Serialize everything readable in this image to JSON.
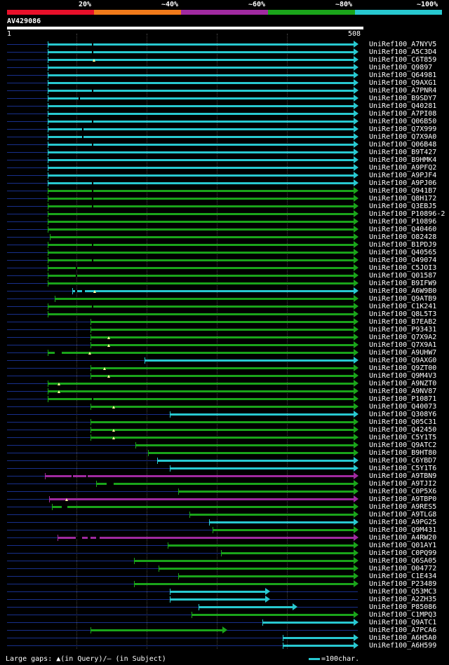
{
  "legend": {
    "labels": [
      "20%",
      "~40%",
      "~60%",
      "~80%",
      "~100%"
    ],
    "colors": [
      "#e8102a",
      "#f07a1a",
      "#a02aa0",
      "#1aa41a",
      "#28c8d0"
    ]
  },
  "query": {
    "name": "AV429086",
    "start": "1",
    "end": "508",
    "length": 508
  },
  "footer": {
    "gaps_text": "Large gaps: ▲(in Query)/– (in Subject)",
    "scale_text": "=100char."
  },
  "hits": [
    {
      "label": "UniRef100_A7NYV5",
      "start": 60,
      "end": 508,
      "color": "cyan",
      "gaps": [
        [
          124,
          126
        ]
      ],
      "tri": null
    },
    {
      "label": "UniRef100_A5C3D4",
      "start": 60,
      "end": 508,
      "color": "cyan",
      "gaps": [
        [
          124,
          126
        ]
      ],
      "tri": null
    },
    {
      "label": "UniRef100_C6T859",
      "start": 60,
      "end": 508,
      "color": "cyan",
      "gaps": [],
      "tri": 127
    },
    {
      "label": "UniRef100_Q9897",
      "start": 60,
      "end": 508,
      "color": "cyan",
      "gaps": [],
      "tri": null
    },
    {
      "label": "UniRef100_Q64981",
      "start": 60,
      "end": 508,
      "color": "cyan",
      "gaps": [],
      "tri": null
    },
    {
      "label": "UniRef100_Q9AXG1",
      "start": 60,
      "end": 508,
      "color": "cyan",
      "gaps": [],
      "tri": null
    },
    {
      "label": "UniRef100_A7PNR4",
      "start": 60,
      "end": 508,
      "color": "cyan",
      "gaps": [
        [
          124,
          126
        ]
      ],
      "tri": null
    },
    {
      "label": "UniRef100_B9SDY7",
      "start": 60,
      "end": 508,
      "color": "cyan",
      "gaps": [
        [
          104,
          106
        ]
      ],
      "tri": null
    },
    {
      "label": "UniRef100_Q40281",
      "start": 60,
      "end": 508,
      "color": "cyan",
      "gaps": [],
      "tri": null
    },
    {
      "label": "UniRef100_A7PI08",
      "start": 60,
      "end": 508,
      "color": "cyan",
      "gaps": [],
      "tri": null
    },
    {
      "label": "UniRef100_Q06B50",
      "start": 60,
      "end": 508,
      "color": "cyan",
      "gaps": [
        [
          124,
          126
        ]
      ],
      "tri": null
    },
    {
      "label": "UniRef100_Q7X999",
      "start": 60,
      "end": 508,
      "color": "cyan",
      "gaps": [
        [
          110,
          112
        ]
      ],
      "tri": null
    },
    {
      "label": "UniRef100_Q7X9A0",
      "start": 60,
      "end": 508,
      "color": "cyan",
      "gaps": [
        [
          110,
          112
        ]
      ],
      "tri": null
    },
    {
      "label": "UniRef100_Q06B48",
      "start": 60,
      "end": 508,
      "color": "cyan",
      "gaps": [
        [
          124,
          126
        ]
      ],
      "tri": null
    },
    {
      "label": "UniRef100_B9T427",
      "start": 60,
      "end": 508,
      "color": "cyan",
      "gaps": [],
      "tri": null
    },
    {
      "label": "UniRef100_B9HMK4",
      "start": 60,
      "end": 508,
      "color": "cyan",
      "gaps": [],
      "tri": null
    },
    {
      "label": "UniRef100_A9PFQ2",
      "start": 60,
      "end": 508,
      "color": "cyan",
      "gaps": [],
      "tri": null
    },
    {
      "label": "UniRef100_A9PJF4",
      "start": 60,
      "end": 508,
      "color": "cyan",
      "gaps": [],
      "tri": null
    },
    {
      "label": "UniRef100_A9PJ06",
      "start": 60,
      "end": 508,
      "color": "cyan",
      "gaps": [
        [
          124,
          126
        ]
      ],
      "tri": null
    },
    {
      "label": "UniRef100_Q941B7",
      "start": 60,
      "end": 508,
      "color": "green",
      "gaps": [
        [
          124,
          126
        ]
      ],
      "tri": null
    },
    {
      "label": "UniRef100_Q8H172",
      "start": 60,
      "end": 508,
      "color": "green",
      "gaps": [
        [
          124,
          126
        ]
      ],
      "tri": null
    },
    {
      "label": "UniRef100_Q3EBJ5",
      "start": 60,
      "end": 508,
      "color": "green",
      "gaps": [
        [
          124,
          126
        ]
      ],
      "tri": null
    },
    {
      "label": "UniRef100_P10896-2",
      "start": 60,
      "end": 508,
      "color": "green",
      "gaps": [],
      "tri": null
    },
    {
      "label": "UniRef100_P10896",
      "start": 60,
      "end": 508,
      "color": "green",
      "gaps": [],
      "tri": null
    },
    {
      "label": "UniRef100_Q40460",
      "start": 60,
      "end": 508,
      "color": "green",
      "gaps": [],
      "tri": null
    },
    {
      "label": "UniRef100_O82428",
      "start": 63,
      "end": 508,
      "color": "green",
      "gaps": [],
      "tri": null
    },
    {
      "label": "UniRef100_B1PDJ9",
      "start": 60,
      "end": 508,
      "color": "green",
      "gaps": [
        [
          124,
          126
        ]
      ],
      "tri": null
    },
    {
      "label": "UniRef100_Q40565",
      "start": 60,
      "end": 508,
      "color": "green",
      "gaps": [],
      "tri": null
    },
    {
      "label": "UniRef100_O49074",
      "start": 60,
      "end": 508,
      "color": "green",
      "gaps": [
        [
          124,
          126
        ]
      ],
      "tri": null
    },
    {
      "label": "UniRef100_C5JOI3",
      "start": 60,
      "end": 508,
      "color": "green",
      "gaps": [
        [
          100,
          102
        ]
      ],
      "tri": null
    },
    {
      "label": "UniRef100_Q01587",
      "start": 60,
      "end": 508,
      "color": "green",
      "gaps": [
        [
          100,
          102
        ]
      ],
      "tri": null
    },
    {
      "label": "UniRef100_B9IFW9",
      "start": 60,
      "end": 508,
      "color": "green",
      "gaps": [],
      "tri": null
    },
    {
      "label": "UniRef100_A6W9B0",
      "start": 95,
      "end": 508,
      "color": "cyan",
      "gaps": [
        [
          99,
          102
        ],
        [
          110,
          114
        ]
      ],
      "tri": 128
    },
    {
      "label": "UniRef100_Q9ATB9",
      "start": 70,
      "end": 508,
      "color": "green",
      "gaps": [],
      "tri": null
    },
    {
      "label": "UniRef100_C1K241",
      "start": 60,
      "end": 508,
      "color": "green",
      "gaps": [
        [
          124,
          126
        ]
      ],
      "tri": null
    },
    {
      "label": "UniRef100_Q8L5T3",
      "start": 60,
      "end": 508,
      "color": "green",
      "gaps": [],
      "tri": null
    },
    {
      "label": "UniRef100_B7EAB2",
      "start": 122,
      "end": 508,
      "color": "green",
      "gaps": [],
      "tri": null
    },
    {
      "label": "UniRef100_P93431",
      "start": 122,
      "end": 508,
      "color": "green",
      "gaps": [],
      "tri": null
    },
    {
      "label": "UniRef100_Q7X9A2",
      "start": 122,
      "end": 508,
      "color": "green",
      "gaps": [],
      "tri": 148
    },
    {
      "label": "UniRef100_Q7X9A1",
      "start": 122,
      "end": 508,
      "color": "green",
      "gaps": [],
      "tri": 148
    },
    {
      "label": "UniRef100_A9UHW7",
      "start": 60,
      "end": 508,
      "color": "green",
      "gaps": [
        [
          70,
          80
        ]
      ],
      "tri": 121
    },
    {
      "label": "UniRef100_Q9AXG0",
      "start": 200,
      "end": 508,
      "color": "cyan",
      "gaps": [],
      "tri": null
    },
    {
      "label": "UniRef100_Q9ZT00",
      "start": 122,
      "end": 508,
      "color": "green",
      "gaps": [],
      "tri": 142
    },
    {
      "label": "UniRef100_Q9M4V3",
      "start": 122,
      "end": 508,
      "color": "green",
      "gaps": [],
      "tri": 148
    },
    {
      "label": "UniRef100_A9NZT0",
      "start": 60,
      "end": 508,
      "color": "green",
      "gaps": [],
      "tri": 76
    },
    {
      "label": "UniRef100_A9NV87",
      "start": 60,
      "end": 508,
      "color": "green",
      "gaps": [],
      "tri": 76
    },
    {
      "label": "UniRef100_P10871",
      "start": 60,
      "end": 508,
      "color": "green",
      "gaps": [
        [
          124,
          126
        ]
      ],
      "tri": null
    },
    {
      "label": "UniRef100_Q40073",
      "start": 122,
      "end": 508,
      "color": "green",
      "gaps": [],
      "tri": 155
    },
    {
      "label": "UniRef100_Q308Y6",
      "start": 236,
      "end": 508,
      "color": "cyan",
      "gaps": [],
      "tri": null
    },
    {
      "label": "UniRef100_Q05C31",
      "start": 122,
      "end": 508,
      "color": "green",
      "gaps": [],
      "tri": null
    },
    {
      "label": "UniRef100_Q42450",
      "start": 122,
      "end": 508,
      "color": "green",
      "gaps": [],
      "tri": 155
    },
    {
      "label": "UniRef100_C5Y1T5",
      "start": 122,
      "end": 508,
      "color": "green",
      "gaps": [],
      "tri": 155
    },
    {
      "label": "UniRef100_Q9ATC2",
      "start": 187,
      "end": 508,
      "color": "green",
      "gaps": [],
      "tri": null
    },
    {
      "label": "UniRef100_B9HT80",
      "start": 205,
      "end": 508,
      "color": "green",
      "gaps": [],
      "tri": null
    },
    {
      "label": "UniRef100_C6YBD7",
      "start": 218,
      "end": 508,
      "color": "cyan",
      "gaps": [],
      "tri": null
    },
    {
      "label": "UniRef100_C5Y1T6",
      "start": 236,
      "end": 508,
      "color": "cyan",
      "gaps": [],
      "tri": null
    },
    {
      "label": "UniRef100_A9TBN9",
      "start": 56,
      "end": 508,
      "color": "purple",
      "gaps": [
        [
          94,
          96
        ],
        [
          116,
          118
        ]
      ],
      "tri": null
    },
    {
      "label": "UniRef100_A9TJI2",
      "start": 130,
      "end": 508,
      "color": "green",
      "gaps": [
        [
          145,
          155
        ]
      ],
      "tri": null
    },
    {
      "label": "UniRef100_C0P5X6",
      "start": 248,
      "end": 508,
      "color": "green",
      "gaps": [],
      "tri": null
    },
    {
      "label": "UniRef100_A9TBP0",
      "start": 62,
      "end": 508,
      "color": "purple",
      "gaps": [],
      "tri": 87
    },
    {
      "label": "UniRef100_A9RES5",
      "start": 66,
      "end": 508,
      "color": "green",
      "gaps": [
        [
          80,
          88
        ]
      ],
      "tri": null
    },
    {
      "label": "UniRef100_A9TLG8",
      "start": 265,
      "end": 508,
      "color": "green",
      "gaps": [],
      "tri": null
    },
    {
      "label": "UniRef100_A9PG25",
      "start": 293,
      "end": 508,
      "color": "cyan",
      "gaps": [],
      "tri": null
    },
    {
      "label": "UniRef100_Q9M431",
      "start": 298,
      "end": 508,
      "color": "green",
      "gaps": [],
      "tri": null
    },
    {
      "label": "UniRef100_A4RW20",
      "start": 74,
      "end": 508,
      "color": "purple",
      "gaps": [
        [
          100,
          110
        ],
        [
          118,
          122
        ],
        [
          130,
          135
        ]
      ],
      "tri": null
    },
    {
      "label": "UniRef100_Q01AY1",
      "start": 233,
      "end": 508,
      "color": "green",
      "gaps": [],
      "tri": null
    },
    {
      "label": "UniRef100_C0PQ99",
      "start": 310,
      "end": 508,
      "color": "green",
      "gaps": [],
      "tri": null
    },
    {
      "label": "UniRef100_Q6SA05",
      "start": 185,
      "end": 508,
      "color": "green",
      "gaps": [],
      "tri": null
    },
    {
      "label": "UniRef100_O04772",
      "start": 220,
      "end": 508,
      "color": "green",
      "gaps": [],
      "tri": null
    },
    {
      "label": "UniRef100_C1E434",
      "start": 248,
      "end": 508,
      "color": "green",
      "gaps": [],
      "tri": null
    },
    {
      "label": "UniRef100_P23489",
      "start": 185,
      "end": 508,
      "color": "green",
      "gaps": [],
      "tri": null
    },
    {
      "label": "UniRef100_Q53MC3",
      "start": 236,
      "end": 380,
      "color": "cyan",
      "gaps": [],
      "tri": null
    },
    {
      "label": "UniRef100_A2ZH35",
      "start": 236,
      "end": 380,
      "color": "cyan",
      "gaps": [],
      "tri": null
    },
    {
      "label": "UniRef100_P85086",
      "start": 278,
      "end": 420,
      "color": "cyan",
      "gaps": [],
      "tri": null
    },
    {
      "label": "UniRef100_C1MPQ3",
      "start": 268,
      "end": 508,
      "color": "green",
      "gaps": [],
      "tri": null
    },
    {
      "label": "UniRef100_Q9ATC1",
      "start": 370,
      "end": 508,
      "color": "cyan",
      "gaps": [],
      "tri": null
    },
    {
      "label": "UniRef100_A7PCA6",
      "start": 122,
      "end": 318,
      "color": "green",
      "gaps": [],
      "tri": null
    },
    {
      "label": "UniRef100_A6H5A0",
      "start": 400,
      "end": 508,
      "color": "cyan",
      "gaps": [],
      "tri": null
    },
    {
      "label": "UniRef100_A6H599",
      "start": 400,
      "end": 508,
      "color": "cyan",
      "gaps": [],
      "tri": null
    }
  ]
}
